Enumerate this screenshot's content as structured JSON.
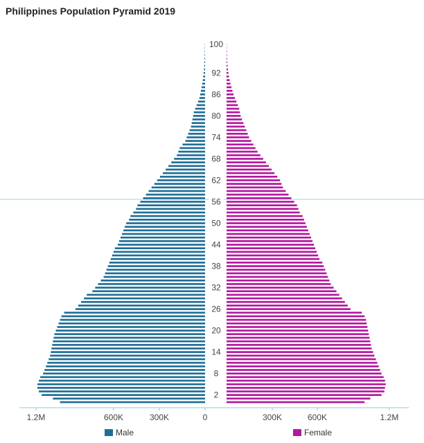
{
  "chart_data": {
    "type": "bar",
    "orientation": "horizontal-diverging",
    "title": "Philippines Population Pyramid 2019",
    "y_tick_labels": [
      "2",
      "8",
      "14",
      "20",
      "26",
      "32",
      "38",
      "44",
      "50",
      "56",
      "62",
      "68",
      "74",
      "80",
      "86",
      "92",
      "100"
    ],
    "x_tick_labels_left": [
      "1.2M",
      "600K",
      "300K",
      "0"
    ],
    "x_tick_labels_right": [
      "300K",
      "600K",
      "1.2M"
    ],
    "ages": [
      0,
      1,
      2,
      3,
      4,
      5,
      6,
      7,
      8,
      9,
      10,
      11,
      12,
      13,
      14,
      15,
      16,
      17,
      18,
      19,
      20,
      21,
      22,
      23,
      24,
      25,
      26,
      27,
      28,
      29,
      30,
      31,
      32,
      33,
      34,
      35,
      36,
      37,
      38,
      39,
      40,
      41,
      42,
      43,
      44,
      45,
      46,
      47,
      48,
      49,
      50,
      51,
      52,
      53,
      54,
      55,
      56,
      57,
      58,
      59,
      60,
      61,
      62,
      63,
      64,
      65,
      66,
      67,
      68,
      69,
      70,
      71,
      72,
      73,
      74,
      75,
      76,
      77,
      78,
      79,
      80,
      81,
      82,
      83,
      84,
      85,
      86,
      87,
      88,
      89,
      90,
      91,
      92,
      93,
      94,
      95,
      96,
      97,
      98,
      99,
      100
    ],
    "series": [
      {
        "name": "Male",
        "color": "#1f6e96",
        "values": [
          1030000,
          1080000,
          1160000,
          1180000,
          1190000,
          1190000,
          1180000,
          1170000,
          1150000,
          1140000,
          1130000,
          1120000,
          1110000,
          1100000,
          1095000,
          1090000,
          1085000,
          1080000,
          1075000,
          1070000,
          1060000,
          1050000,
          1040000,
          1030000,
          1020000,
          1000000,
          920000,
          900000,
          880000,
          860000,
          840000,
          800000,
          780000,
          760000,
          740000,
          720000,
          710000,
          700000,
          690000,
          680000,
          670000,
          660000,
          650000,
          640000,
          620000,
          610000,
          600000,
          590000,
          580000,
          570000,
          560000,
          540000,
          530000,
          510000,
          490000,
          480000,
          460000,
          440000,
          420000,
          400000,
          380000,
          360000,
          340000,
          320000,
          300000,
          280000,
          260000,
          240000,
          220000,
          200000,
          190000,
          180000,
          160000,
          140000,
          130000,
          120000,
          110000,
          100000,
          95000,
          90000,
          85000,
          80000,
          70000,
          60000,
          50000,
          40000,
          35000,
          30000,
          25000,
          20000,
          16000,
          13000,
          10000,
          8000,
          6000,
          5000,
          4000,
          3000,
          2500,
          2000,
          1500
        ]
      },
      {
        "name": "Female",
        "color": "#b3179f",
        "values": [
          980000,
          1020000,
          1100000,
          1120000,
          1125000,
          1130000,
          1125000,
          1115000,
          1100000,
          1090000,
          1080000,
          1070000,
          1060000,
          1050000,
          1040000,
          1030000,
          1025000,
          1020000,
          1015000,
          1010000,
          1005000,
          1000000,
          995000,
          990000,
          980000,
          960000,
          880000,
          860000,
          840000,
          820000,
          800000,
          780000,
          760000,
          740000,
          730000,
          720000,
          710000,
          700000,
          690000,
          680000,
          660000,
          650000,
          640000,
          630000,
          620000,
          610000,
          600000,
          590000,
          580000,
          570000,
          560000,
          550000,
          540000,
          520000,
          510000,
          500000,
          480000,
          460000,
          440000,
          420000,
          400000,
          390000,
          380000,
          360000,
          340000,
          320000,
          300000,
          280000,
          260000,
          240000,
          220000,
          205000,
          190000,
          175000,
          160000,
          150000,
          140000,
          130000,
          120000,
          110000,
          100000,
          95000,
          90000,
          80000,
          70000,
          60000,
          50000,
          42000,
          35000,
          28000,
          22000,
          17000,
          13000,
          10000,
          7000,
          5000,
          4000,
          3000,
          2500,
          2000,
          1500
        ]
      }
    ],
    "legend_position": "bottom",
    "grid": false
  }
}
